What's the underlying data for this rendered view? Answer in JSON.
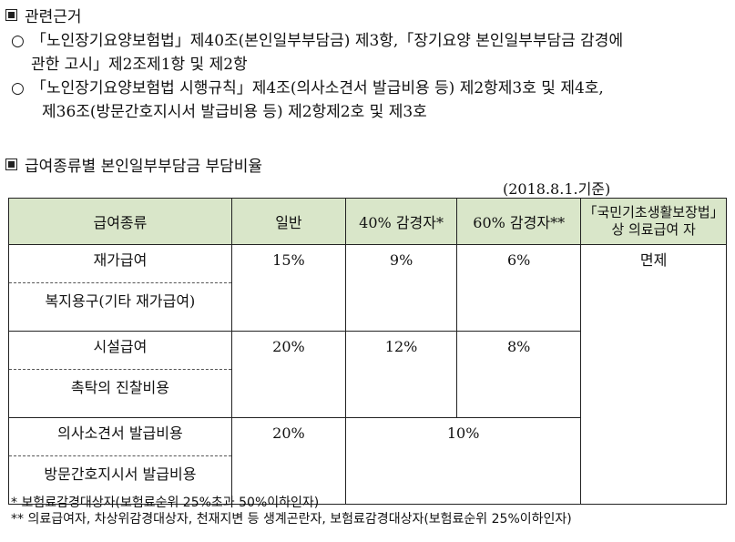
{
  "sections": {
    "basis_title": "관련근거",
    "ratio_title": "급여종류별 본인일부부담금 부담비율"
  },
  "basis": [
    {
      "bullet": "○",
      "lines": [
        "「노인장기요양보험법」제40조(본인일부부담금) 제3항,「장기요양 본인일부부담금 감경에",
        "관한 고시」제2조제1항 및 제2항"
      ]
    },
    {
      "bullet": "○",
      "lines": [
        "「노인장기요양보험법 시행규칙」제4조(의사소견서 발급비용 등) 제2항제3호 및 제4호,",
        "제36조(방문간호지시서 발급비용 등) 제2항제2호 및 제3호"
      ]
    }
  ],
  "date_note": "(2018.8.1.기준)",
  "table": {
    "headers": [
      "급여종류",
      "일반",
      "40% 감경자*",
      "60% 감경자**",
      "「국민기초생활보장법」",
      "상 의료급여 자"
    ],
    "groups": [
      {
        "items": [
          "재가급여",
          "복지용구(기타 재가급여)"
        ],
        "general": "15%",
        "reduced40": "9%",
        "reduced60": "6%"
      },
      {
        "items": [
          "시설급여",
          "촉탁의 진찰비용"
        ],
        "general": "20%",
        "reduced40": "12%",
        "reduced60": "8%"
      },
      {
        "items": [
          "의사소견서 발급비용",
          "방문간호지시서 발급비용"
        ],
        "general": "20%",
        "reduced_merged": "10%"
      }
    ],
    "medical_aid": "면제"
  },
  "footnotes": [
    "* 보험료감경대상자(보험료순위 25%초과 50%이하인자)",
    "** 의료급여자, 차상위감경대상자, 천재지변 등 생계곤란자, 보험료감경대상자(보험료순위 25%이하인자)"
  ]
}
